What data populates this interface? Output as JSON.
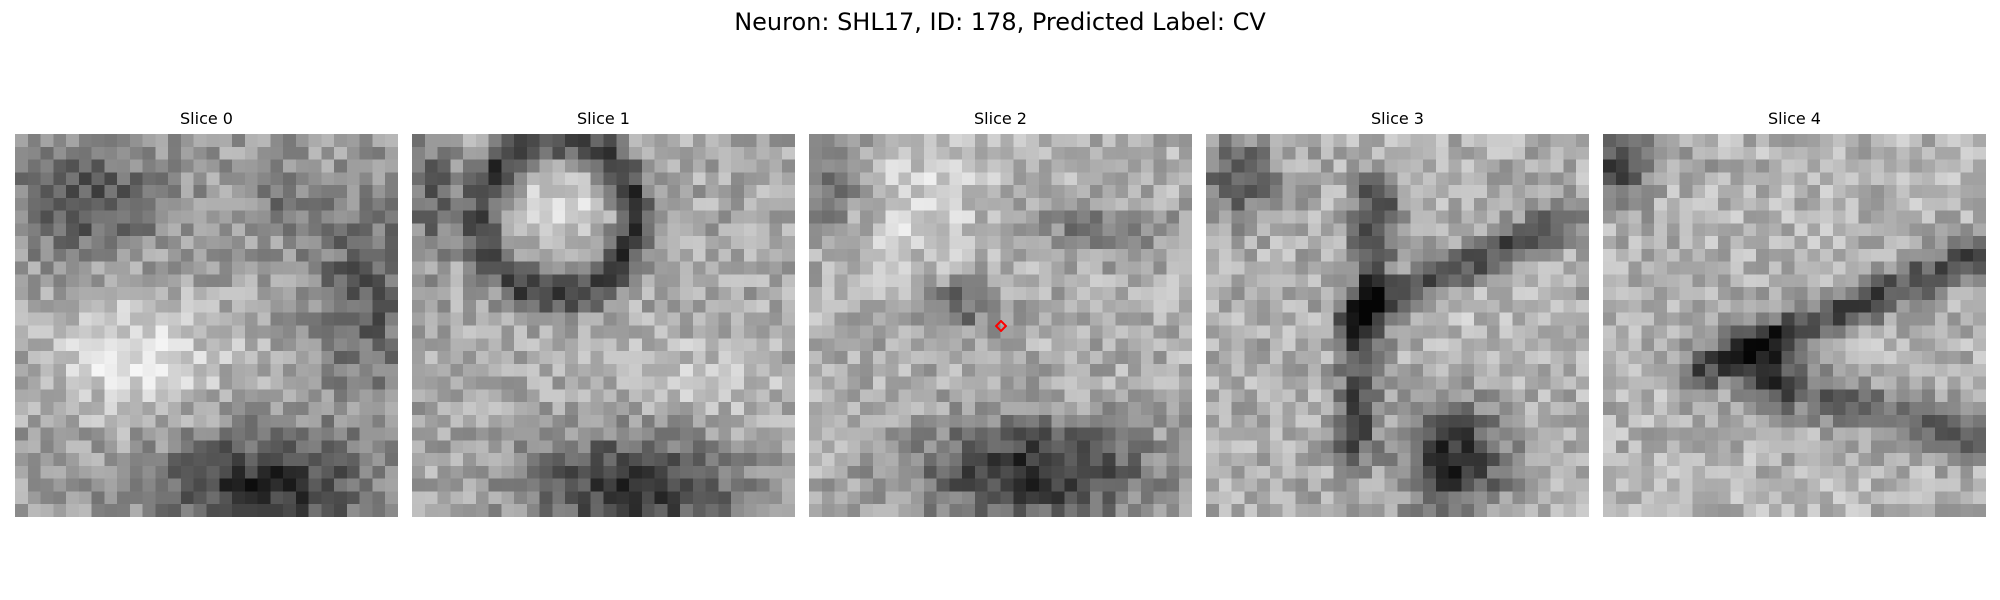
{
  "figure": {
    "title": "Neuron: SHL17, ID: 178, Predicted Label: CV"
  },
  "panels": [
    {
      "title": "Slice 0",
      "image": "grayscale electron-microscopy patch, dark membrane blob at bottom center, bright textured region in middle-left"
    },
    {
      "title": "Slice 1",
      "image": "grayscale electron-microscopy patch, round bright vesicle with dark ring at top-left, dark region at bottom"
    },
    {
      "title": "Slice 2",
      "image": "grayscale electron-microscopy patch, bright blob top-left, dark region at bottom, red diamond marker at center"
    },
    {
      "title": "Slice 3",
      "image": "grayscale electron-microscopy patch, dark curved membrane outlining bright region, dark blob at bottom"
    },
    {
      "title": "Slice 4",
      "image": "grayscale electron-microscopy patch, bright textured field with dark curved band across middle"
    }
  ],
  "marker": {
    "shape": "diamond",
    "color": "#ff0000",
    "slice": "Slice 2"
  }
}
